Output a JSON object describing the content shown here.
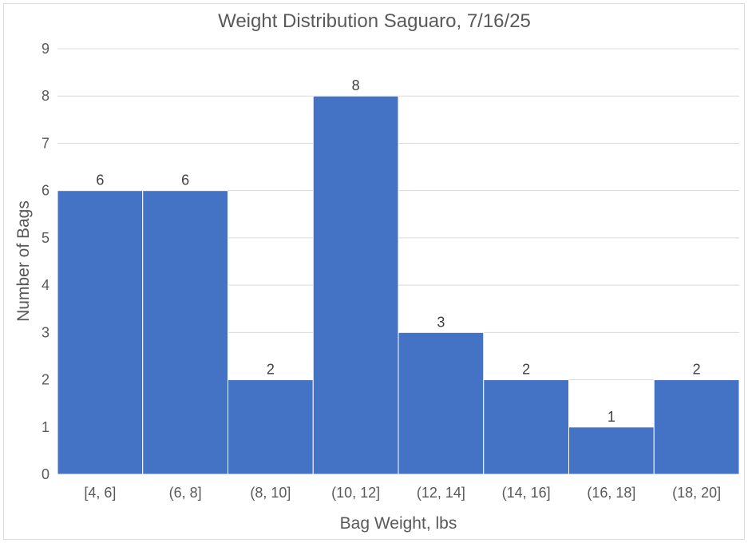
{
  "chart_data": {
    "type": "bar",
    "title": "Weight Distribution Saguaro, 7/16/25",
    "xlabel": "Bag Weight, lbs",
    "ylabel": "Number of Bags",
    "categories": [
      "[4, 6]",
      "(6, 8]",
      "(8, 10]",
      "(10, 12]",
      "(12, 14]",
      "(14, 16]",
      "(16, 18]",
      "(18, 20]"
    ],
    "values": [
      6,
      6,
      2,
      8,
      3,
      2,
      1,
      2
    ],
    "ylim": [
      0,
      9
    ],
    "yticks": [
      0,
      1,
      2,
      3,
      4,
      5,
      6,
      7,
      8,
      9
    ],
    "grid": true,
    "data_labels": true,
    "bar_color": "#4472C4"
  }
}
